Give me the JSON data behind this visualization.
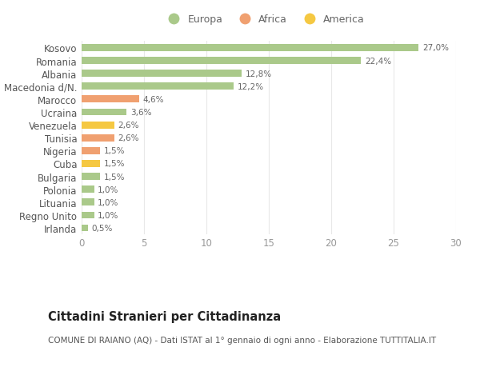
{
  "categories": [
    "Kosovo",
    "Romania",
    "Albania",
    "Macedonia d/N.",
    "Marocco",
    "Ucraina",
    "Venezuela",
    "Tunisia",
    "Nigeria",
    "Cuba",
    "Bulgaria",
    "Polonia",
    "Lituania",
    "Regno Unito",
    "Irlanda"
  ],
  "values": [
    27.0,
    22.4,
    12.8,
    12.2,
    4.6,
    3.6,
    2.6,
    2.6,
    1.5,
    1.5,
    1.5,
    1.0,
    1.0,
    1.0,
    0.5
  ],
  "continents": [
    "Europa",
    "Europa",
    "Europa",
    "Europa",
    "Africa",
    "Europa",
    "America",
    "Africa",
    "Africa",
    "America",
    "Europa",
    "Europa",
    "Europa",
    "Europa",
    "Europa"
  ],
  "colors": {
    "Europa": "#aac98a",
    "Africa": "#f0a070",
    "America": "#f5c842"
  },
  "labels": [
    "27,0%",
    "22,4%",
    "12,8%",
    "12,2%",
    "4,6%",
    "3,6%",
    "2,6%",
    "2,6%",
    "1,5%",
    "1,5%",
    "1,5%",
    "1,0%",
    "1,0%",
    "1,0%",
    "0,5%"
  ],
  "xlim": [
    0,
    30
  ],
  "xticks": [
    0,
    5,
    10,
    15,
    20,
    25,
    30
  ],
  "title": "Cittadini Stranieri per Cittadinanza",
  "subtitle": "COMUNE DI RAIANO (AQ) - Dati ISTAT al 1° gennaio di ogni anno - Elaborazione TUTTITALIA.IT",
  "legend_labels": [
    "Europa",
    "Africa",
    "America"
  ],
  "legend_colors": [
    "#aac98a",
    "#f0a070",
    "#f5c842"
  ],
  "background_color": "#ffffff",
  "grid_color": "#e8e8e8",
  "bar_height": 0.55,
  "label_fontsize": 7.5,
  "axis_label_fontsize": 8,
  "title_fontsize": 10.5,
  "subtitle_fontsize": 7.5,
  "legend_fontsize": 9
}
